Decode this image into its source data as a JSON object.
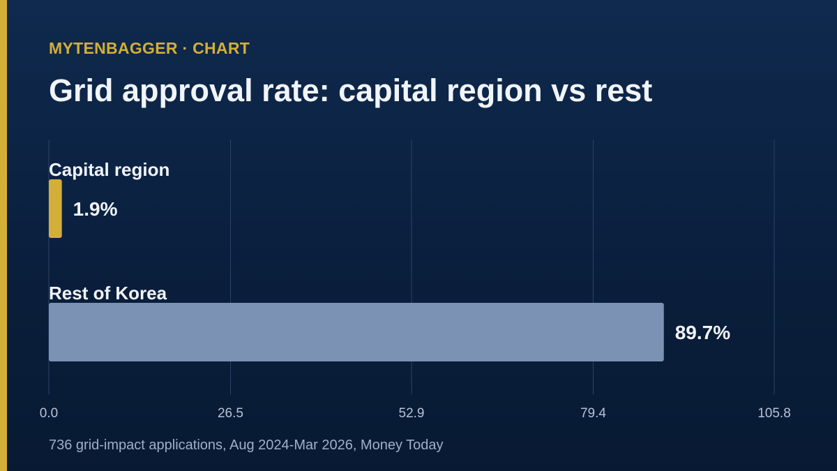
{
  "header": {
    "brand": "MYTENBAGGER · CHART",
    "title": "Grid approval rate: capital region vs rest"
  },
  "footer": {
    "source": "736 grid-impact applications, Aug 2024-Mar 2026, Money Today"
  },
  "colors": {
    "accent": "#d4af37",
    "background": "#0c2344",
    "bar_rest": "#7b92b5",
    "gridline": "#2a4468"
  },
  "chart_data": {
    "type": "bar",
    "orientation": "horizontal",
    "categories": [
      "Capital region",
      "Rest of Korea"
    ],
    "values": [
      1.9,
      89.7
    ],
    "value_labels": [
      "1.9%",
      "89.7%"
    ],
    "bar_colors": [
      "#d4af37",
      "#7b92b5"
    ],
    "xlim": [
      0,
      105.8
    ],
    "xticks": [
      0,
      26.5,
      52.9,
      79.4,
      105.8
    ],
    "xtick_labels": [
      "0.0",
      "26.5",
      "52.9",
      "79.4",
      "105.8"
    ],
    "grid": true,
    "title": "Grid approval rate: capital region vs rest",
    "xlabel": "",
    "ylabel": ""
  }
}
